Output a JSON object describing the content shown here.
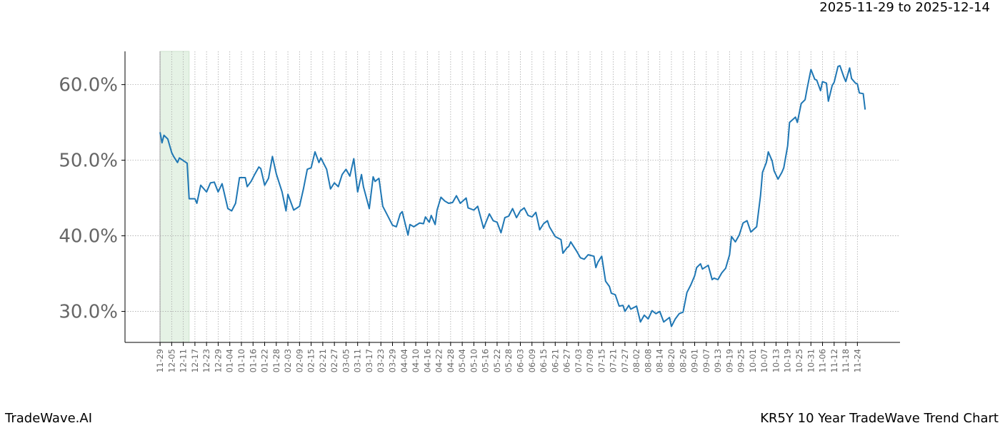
{
  "header": {
    "date_range": "2025-11-29 to 2025-12-14"
  },
  "footer": {
    "brand": "TradeWave.AI",
    "chart_name": "KR5Y 10 Year TradeWave Trend Chart"
  },
  "chart_data": {
    "type": "line",
    "title": "",
    "xlabel": "",
    "ylabel": "",
    "ylim": [
      25.9,
      64.4
    ],
    "y_ticks": [
      30,
      40,
      50,
      60
    ],
    "y_tick_labels": [
      "30.0%",
      "40.0%",
      "50.0%",
      "60.0%"
    ],
    "x_tick_labels": [
      "11-29",
      "12-05",
      "12-11",
      "12-17",
      "12-23",
      "12-29",
      "01-04",
      "01-10",
      "01-16",
      "01-22",
      "01-28",
      "02-03",
      "02-09",
      "02-15",
      "02-21",
      "02-27",
      "03-05",
      "03-11",
      "03-17",
      "03-23",
      "03-29",
      "04-04",
      "04-10",
      "04-16",
      "04-22",
      "04-28",
      "05-04",
      "05-10",
      "05-16",
      "05-22",
      "05-28",
      "06-03",
      "06-09",
      "06-15",
      "06-21",
      "06-27",
      "07-03",
      "07-09",
      "07-15",
      "07-21",
      "07-27",
      "08-02",
      "08-08",
      "08-14",
      "08-20",
      "08-26",
      "09-01",
      "09-07",
      "09-13",
      "09-19",
      "09-25",
      "10-01",
      "10-07",
      "10-13",
      "10-19",
      "10-25",
      "10-31",
      "11-06",
      "11-12",
      "11-18",
      "11-24"
    ],
    "grid": true,
    "highlight_range": [
      "11-29",
      "12-14"
    ],
    "colors": {
      "line": "#1f77b4",
      "highlight": "#e5f2e5",
      "grid": "#aaaaaa",
      "tick_text": "#666666"
    },
    "series": [
      {
        "x": [
          "11-29",
          "11-30",
          "12-01",
          "12-03",
          "12-05",
          "12-06",
          "12-08",
          "12-09",
          "12-13",
          "12-14",
          "12-17",
          "12-18",
          "12-20",
          "12-23",
          "12-25",
          "12-27",
          "12-29",
          "12-31",
          "01-03",
          "01-05",
          "01-07",
          "01-09",
          "01-12",
          "01-13",
          "01-15",
          "01-17",
          "01-19",
          "01-20",
          "01-22",
          "01-24",
          "01-26",
          "01-28",
          "01-31",
          "02-02",
          "02-03",
          "02-06",
          "02-09",
          "02-11",
          "02-13",
          "02-15",
          "02-17",
          "02-19",
          "02-20",
          "02-23",
          "02-25",
          "02-27",
          "03-01",
          "03-03",
          "03-05",
          "03-07",
          "03-09",
          "03-11",
          "03-13",
          "03-14",
          "03-17",
          "03-19",
          "03-20",
          "03-22",
          "03-24",
          "03-26",
          "03-29",
          "03-31",
          "04-02",
          "04-03",
          "04-06",
          "04-07",
          "04-09",
          "04-12",
          "04-14",
          "04-15",
          "04-17",
          "04-18",
          "04-20",
          "04-21",
          "04-23",
          "04-25",
          "04-27",
          "04-29",
          "05-01",
          "05-03",
          "05-06",
          "05-07",
          "05-10",
          "05-12",
          "05-15",
          "05-18",
          "05-20",
          "05-22",
          "05-24",
          "05-26",
          "05-28",
          "05-30",
          "06-01",
          "06-03",
          "06-05",
          "06-07",
          "06-09",
          "06-11",
          "06-13",
          "06-15",
          "06-17",
          "06-18",
          "06-21",
          "06-24",
          "06-25",
          "06-27",
          "06-28",
          "06-29",
          "07-02",
          "07-04",
          "07-06",
          "07-08",
          "07-11",
          "07-12",
          "07-13",
          "07-15",
          "07-17",
          "07-19",
          "07-20",
          "07-22",
          "07-24",
          "07-26",
          "07-27",
          "07-29",
          "07-30",
          "08-02",
          "08-04",
          "08-06",
          "08-08",
          "08-10",
          "08-12",
          "08-14",
          "08-16",
          "08-19",
          "08-20",
          "08-22",
          "08-24",
          "08-26",
          "08-28",
          "08-30",
          "09-01",
          "09-02",
          "09-04",
          "09-05",
          "09-08",
          "09-10",
          "09-11",
          "09-13",
          "09-15",
          "09-17",
          "09-19",
          "09-20",
          "09-22",
          "09-24",
          "09-26",
          "09-28",
          "09-30",
          "10-03",
          "10-05",
          "10-06",
          "10-08",
          "10-09",
          "10-11",
          "10-12",
          "10-14",
          "10-16",
          "10-17",
          "10-19",
          "10-20",
          "10-23",
          "10-24",
          "10-26",
          "10-28",
          "10-29",
          "10-31",
          "11-02",
          "11-03",
          "11-05",
          "11-06",
          "11-08",
          "11-09",
          "11-11",
          "11-12",
          "11-14",
          "11-15",
          "11-17",
          "11-18",
          "11-20",
          "11-21",
          "11-23",
          "11-24",
          "11-25",
          "11-27",
          "11-28"
        ],
        "y": [
          53.7,
          52.3,
          53.3,
          52.8,
          51.0,
          50.5,
          49.7,
          50.3,
          49.6,
          44.9,
          44.9,
          44.3,
          46.7,
          45.8,
          47.0,
          47.1,
          45.8,
          46.9,
          43.6,
          43.3,
          44.3,
          47.7,
          47.7,
          46.5,
          47.2,
          48.2,
          49.1,
          48.9,
          46.7,
          47.6,
          50.5,
          48.2,
          45.8,
          43.3,
          45.5,
          43.4,
          43.9,
          46.2,
          48.8,
          49.0,
          51.1,
          49.7,
          50.3,
          48.8,
          46.2,
          47.0,
          46.5,
          48.1,
          48.8,
          47.9,
          50.2,
          45.8,
          48.1,
          46.5,
          43.6,
          47.8,
          47.2,
          47.6,
          43.9,
          42.9,
          41.4,
          41.2,
          42.9,
          43.2,
          40.1,
          41.5,
          41.2,
          41.7,
          41.6,
          42.5,
          41.8,
          42.7,
          41.5,
          43.4,
          45.1,
          44.6,
          44.3,
          44.4,
          45.3,
          44.3,
          45.0,
          43.7,
          43.4,
          43.9,
          41.0,
          42.9,
          42.0,
          41.8,
          40.4,
          42.4,
          42.6,
          43.6,
          42.4,
          43.3,
          43.7,
          42.7,
          42.5,
          43.1,
          40.8,
          41.6,
          42.0,
          41.2,
          39.9,
          39.5,
          37.7,
          38.4,
          38.6,
          39.2,
          38.0,
          37.1,
          36.9,
          37.5,
          37.3,
          35.8,
          36.5,
          37.3,
          34.0,
          33.3,
          32.4,
          32.2,
          30.7,
          30.8,
          30.0,
          30.8,
          30.3,
          30.7,
          28.6,
          29.5,
          29.0,
          30.1,
          29.7,
          30.0,
          28.6,
          29.2,
          28.0,
          29.0,
          29.7,
          29.9,
          32.5,
          33.5,
          34.7,
          35.8,
          36.3,
          35.6,
          36.1,
          34.2,
          34.4,
          34.2,
          35.1,
          35.7,
          37.5,
          39.9,
          39.2,
          40.1,
          41.7,
          42.0,
          40.5,
          41.2,
          45.3,
          48.4,
          49.7,
          51.1,
          49.9,
          48.6,
          47.5,
          48.4,
          49.0,
          51.9,
          55.0,
          55.7,
          55.0,
          57.5,
          58.0,
          59.4,
          62.0,
          60.7,
          60.6,
          59.2,
          60.4,
          60.2,
          57.8,
          59.9,
          60.3,
          62.4,
          62.5,
          61.0,
          60.4,
          62.2,
          60.8,
          60.2,
          60.1,
          58.9,
          58.8,
          56.7
        ]
      }
    ]
  }
}
